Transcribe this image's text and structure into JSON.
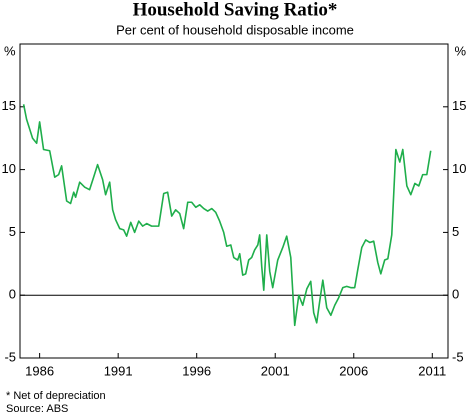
{
  "chart_data": {
    "type": "line",
    "title": "Household Saving Ratio*",
    "subtitle": "Per cent of household disposable income",
    "y_unit": "%",
    "footnote": "*     Net of depreciation",
    "source": "Source: ABS",
    "x": [
      1984.98,
      1985.17,
      1985.55,
      1985.81,
      1986.0,
      1986.25,
      1986.64,
      1986.96,
      1987.21,
      1987.4,
      1987.72,
      1987.97,
      1988.17,
      1988.29,
      1988.55,
      1988.87,
      1989.18,
      1989.44,
      1989.69,
      1990.01,
      1990.2,
      1990.46,
      1990.65,
      1990.84,
      1991.1,
      1991.35,
      1991.54,
      1991.8,
      1992.05,
      1992.31,
      1992.56,
      1992.82,
      1993.13,
      1993.58,
      1993.9,
      1994.15,
      1994.41,
      1994.66,
      1994.92,
      1995.17,
      1995.43,
      1995.68,
      1995.94,
      1996.19,
      1996.45,
      1996.7,
      1996.96,
      1997.21,
      1997.46,
      1997.72,
      1997.91,
      1998.17,
      1998.36,
      1998.61,
      1998.74,
      1998.93,
      1999.12,
      1999.31,
      1999.5,
      1999.69,
      1999.89,
      2000.01,
      2000.14,
      2000.27,
      2000.46,
      2000.65,
      2000.84,
      2001.16,
      2001.48,
      2001.73,
      2001.99,
      2002.24,
      2002.5,
      2002.75,
      2003.01,
      2003.26,
      2003.45,
      2003.64,
      2003.83,
      2004.03,
      2004.28,
      2004.54,
      2004.79,
      2005.04,
      2005.3,
      2005.55,
      2005.81,
      2006.06,
      2006.25,
      2006.51,
      2006.76,
      2007.02,
      2007.27,
      2007.53,
      2007.72,
      2007.97,
      2008.17,
      2008.42,
      2008.68,
      2008.93,
      2009.12,
      2009.38,
      2009.63,
      2009.89,
      2010.14,
      2010.39,
      2010.65,
      2010.9
    ],
    "series": [
      {
        "name": "Household saving ratio",
        "color": "#1fae4b",
        "values": [
          15.2,
          14.0,
          12.5,
          12.1,
          13.8,
          11.6,
          11.5,
          9.4,
          9.6,
          10.3,
          7.5,
          7.3,
          8.2,
          7.8,
          9.0,
          8.6,
          8.4,
          9.4,
          10.4,
          9.2,
          8.0,
          9.0,
          6.8,
          6.0,
          5.3,
          5.2,
          4.7,
          5.8,
          5.0,
          5.9,
          5.5,
          5.7,
          5.5,
          5.5,
          8.1,
          8.2,
          6.3,
          6.8,
          6.5,
          5.3,
          7.4,
          7.4,
          7.0,
          7.2,
          6.9,
          6.7,
          6.9,
          6.6,
          5.9,
          5.0,
          3.9,
          4.0,
          3.0,
          2.8,
          3.3,
          1.6,
          1.7,
          2.8,
          3.0,
          3.6,
          4.0,
          4.8,
          2.3,
          0.4,
          4.8,
          1.9,
          0.6,
          2.8,
          3.8,
          4.7,
          3.0,
          -2.4,
          0.0,
          -0.8,
          0.5,
          1.1,
          -1.4,
          -2.2,
          -0.5,
          1.2,
          -1.0,
          -1.6,
          -0.8,
          -0.2,
          0.6,
          0.7,
          0.6,
          0.6,
          2.0,
          3.8,
          4.4,
          4.2,
          4.3,
          2.6,
          1.7,
          2.8,
          2.9,
          4.8,
          11.6,
          10.6,
          11.6,
          8.7,
          8.0,
          8.9,
          8.7,
          9.6,
          9.6,
          11.5
        ]
      }
    ],
    "xlim": [
      1984.75,
      2012.0
    ],
    "xticks": [
      1986,
      1991,
      1996,
      2001,
      2006,
      2011
    ],
    "ylim": [
      -5,
      20
    ],
    "yticks": [
      -5,
      0,
      5,
      10,
      15
    ],
    "zero_line": true
  }
}
